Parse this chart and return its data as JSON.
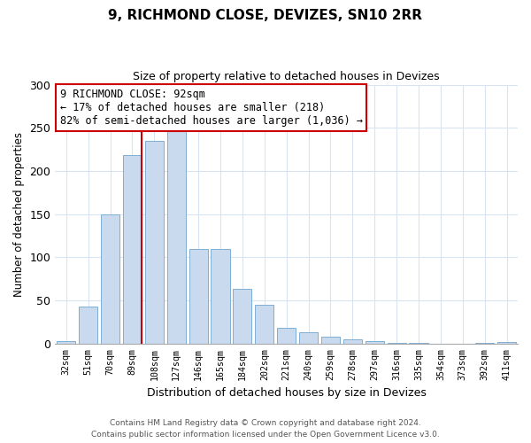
{
  "title": "9, RICHMOND CLOSE, DEVIZES, SN10 2RR",
  "subtitle": "Size of property relative to detached houses in Devizes",
  "xlabel": "Distribution of detached houses by size in Devizes",
  "ylabel": "Number of detached properties",
  "bar_labels": [
    "32sqm",
    "51sqm",
    "70sqm",
    "89sqm",
    "108sqm",
    "127sqm",
    "146sqm",
    "165sqm",
    "184sqm",
    "202sqm",
    "221sqm",
    "240sqm",
    "259sqm",
    "278sqm",
    "297sqm",
    "316sqm",
    "335sqm",
    "354sqm",
    "373sqm",
    "392sqm",
    "411sqm"
  ],
  "bar_values": [
    3,
    43,
    150,
    218,
    235,
    247,
    110,
    110,
    63,
    45,
    18,
    13,
    8,
    5,
    3,
    1,
    1,
    0,
    0,
    1,
    2
  ],
  "bar_color": "#c9d9ee",
  "bar_edge_color": "#7fafd4",
  "highlight_index": 3,
  "highlight_color": "#cc0000",
  "annotation_line1": "9 RICHMOND CLOSE: 92sqm",
  "annotation_line2": "← 17% of detached houses are smaller (218)",
  "annotation_line3": "82% of semi-detached houses are larger (1,036) →",
  "annotation_box_color": "#ffffff",
  "annotation_box_edge": "#cc0000",
  "ylim": [
    0,
    300
  ],
  "yticks": [
    0,
    50,
    100,
    150,
    200,
    250,
    300
  ],
  "footer_line1": "Contains HM Land Registry data © Crown copyright and database right 2024.",
  "footer_line2": "Contains public sector information licensed under the Open Government Licence v3.0.",
  "background_color": "#ffffff",
  "grid_color": "#d8e4f0"
}
